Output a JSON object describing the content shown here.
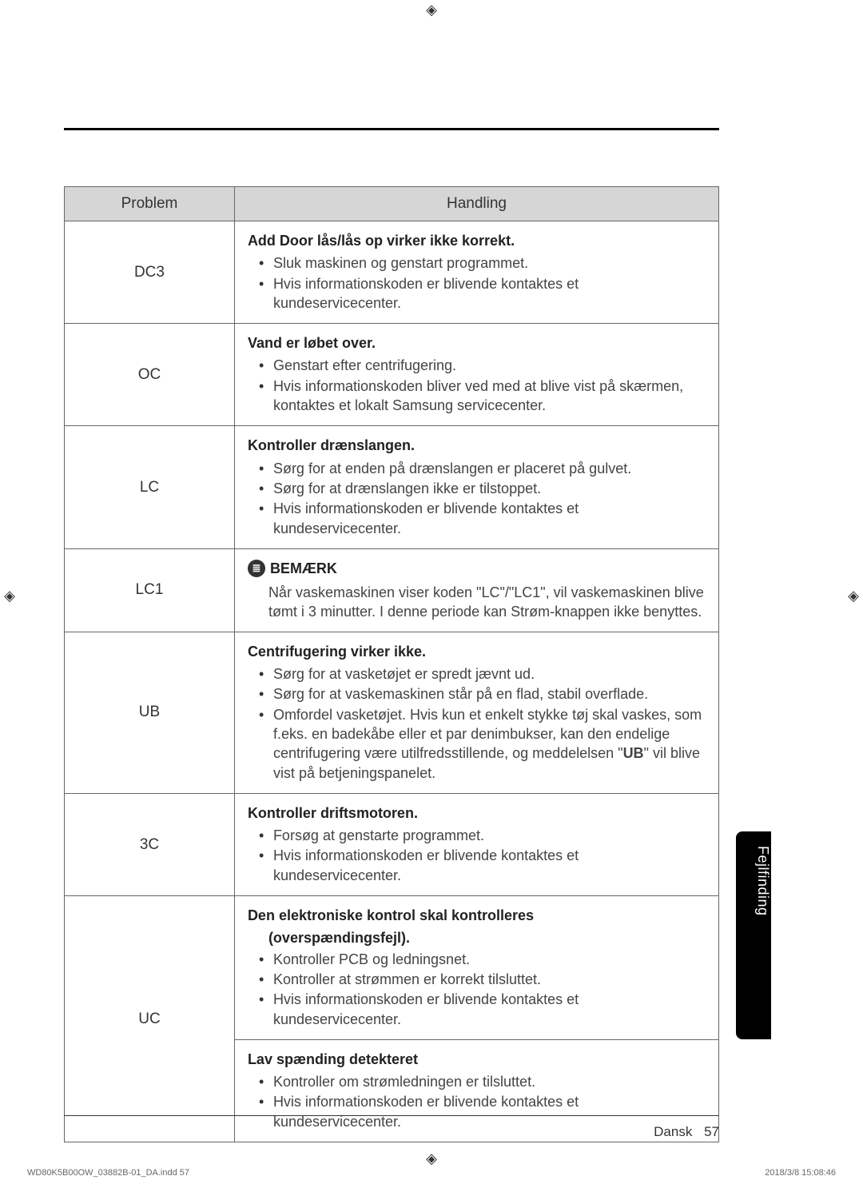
{
  "marks": {
    "registration_glyph": "◈"
  },
  "table": {
    "headers": {
      "problem": "Problem",
      "action": "Handling"
    },
    "rows": [
      {
        "code": "DC3",
        "title": "Add Door lås/lås op virker ikke korrekt.",
        "bullets": [
          "Sluk maskinen og genstart programmet.",
          "Hvis informationskoden er blivende kontaktes et kundeservicecenter."
        ]
      },
      {
        "code": "OC",
        "title": "Vand er løbet over.",
        "bullets": [
          "Genstart efter centrifugering.",
          "Hvis informationskoden bliver ved med at blive vist på skærmen, kontaktes et lokalt Samsung servicecenter."
        ]
      },
      {
        "code": "LC",
        "title": "Kontroller drænslangen.",
        "bullets": [
          "Sørg for at enden på drænslangen er placeret på gulvet.",
          "Sørg for at drænslangen ikke er tilstoppet.",
          "Hvis informationskoden er blivende kontaktes et kundeservicecenter."
        ]
      },
      {
        "code": "LC1",
        "note_label": "BEMÆRK",
        "note_body": "Når vaskemaskinen viser koden \"LC\"/\"LC1\", vil vaskemaskinen blive tømt i 3 minutter. I denne periode kan Strøm-knappen ikke benyttes."
      },
      {
        "code": "UB",
        "title": "Centrifugering virker ikke.",
        "bullets": [
          "Sørg for at vasketøjet er spredt jævnt ud.",
          "Sørg for at vaskemaskinen står på en flad, stabil overflade.",
          "Omfordel vasketøjet. Hvis kun et enkelt stykke tøj skal vaskes, som f.eks. en badekåbe eller et par denimbukser, kan den endelige centrifugering være utilfredsstillende, og meddelelsen \"__UB__\" vil blive vist på betjeningspanelet."
        ]
      },
      {
        "code": "3C",
        "title": "Kontroller driftsmotoren.",
        "bullets": [
          "Forsøg at genstarte programmet.",
          "Hvis informationskoden er blivende kontaktes et kundeservicecenter."
        ]
      },
      {
        "code": "UC",
        "sections": [
          {
            "title": "Den elektroniske kontrol skal kontrolleres",
            "title_cont": "(overspændingsfejl).",
            "bullets": [
              "Kontroller PCB og ledningsnet.",
              "Kontroller at strømmen er korrekt tilsluttet.",
              "Hvis informationskoden er blivende kontaktes et kundeservicecenter."
            ]
          },
          {
            "title": "Lav spænding detekteret",
            "bullets": [
              "Kontroller om strømledningen er tilsluttet.",
              "Hvis informationskoden er blivende kontaktes et kundeservicecenter."
            ]
          }
        ]
      }
    ]
  },
  "side_tab": "Fejlfinding",
  "footer": {
    "lang": "Dansk",
    "page": "57"
  },
  "print": {
    "left": "WD80K5B00OW_03882B-01_DA.indd   57",
    "right": "2018/3/8   15:08:46"
  },
  "colors": {
    "header_bg": "#d6d6d6",
    "border": "#666666",
    "text": "#444444",
    "tab_bg": "#000000",
    "tab_text": "#ffffff"
  }
}
